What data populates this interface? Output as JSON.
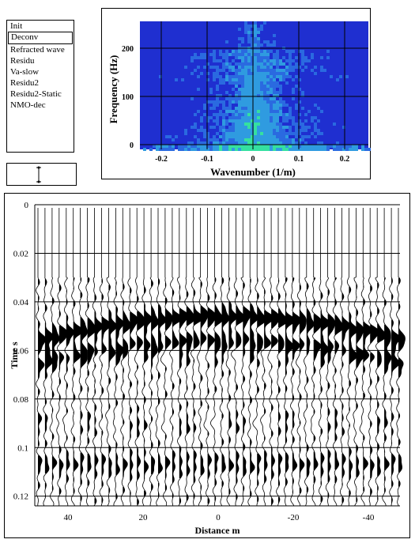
{
  "menu": {
    "items": [
      "Init",
      "Deconv",
      "Refracted wave",
      "Residu",
      "Va-slow",
      "Residu2",
      "Residu2-Static",
      "NMO-dec"
    ],
    "selected_index": 1
  },
  "spectrum": {
    "ylabel": "Frequency (Hz)",
    "xlabel": "Wavenumber (1/m)",
    "y_ticks": [
      "200",
      "100",
      "0"
    ],
    "x_ticks": [
      "-0.2",
      "-0.1",
      "0",
      "0.1",
      "0.2"
    ],
    "colors": {
      "bg": "#1f2fd0",
      "mid": "#2f9be0",
      "high": "#35e0a0"
    }
  },
  "gather": {
    "ylabel": "Time  s",
    "xlabel": "Distance m",
    "y_ticks": [
      "0",
      "0.02",
      "0.04",
      "0.06",
      "0.08",
      "0.1",
      "0.12"
    ],
    "x_ticks": [
      "40",
      "20",
      "0",
      "-20",
      "-40"
    ]
  }
}
